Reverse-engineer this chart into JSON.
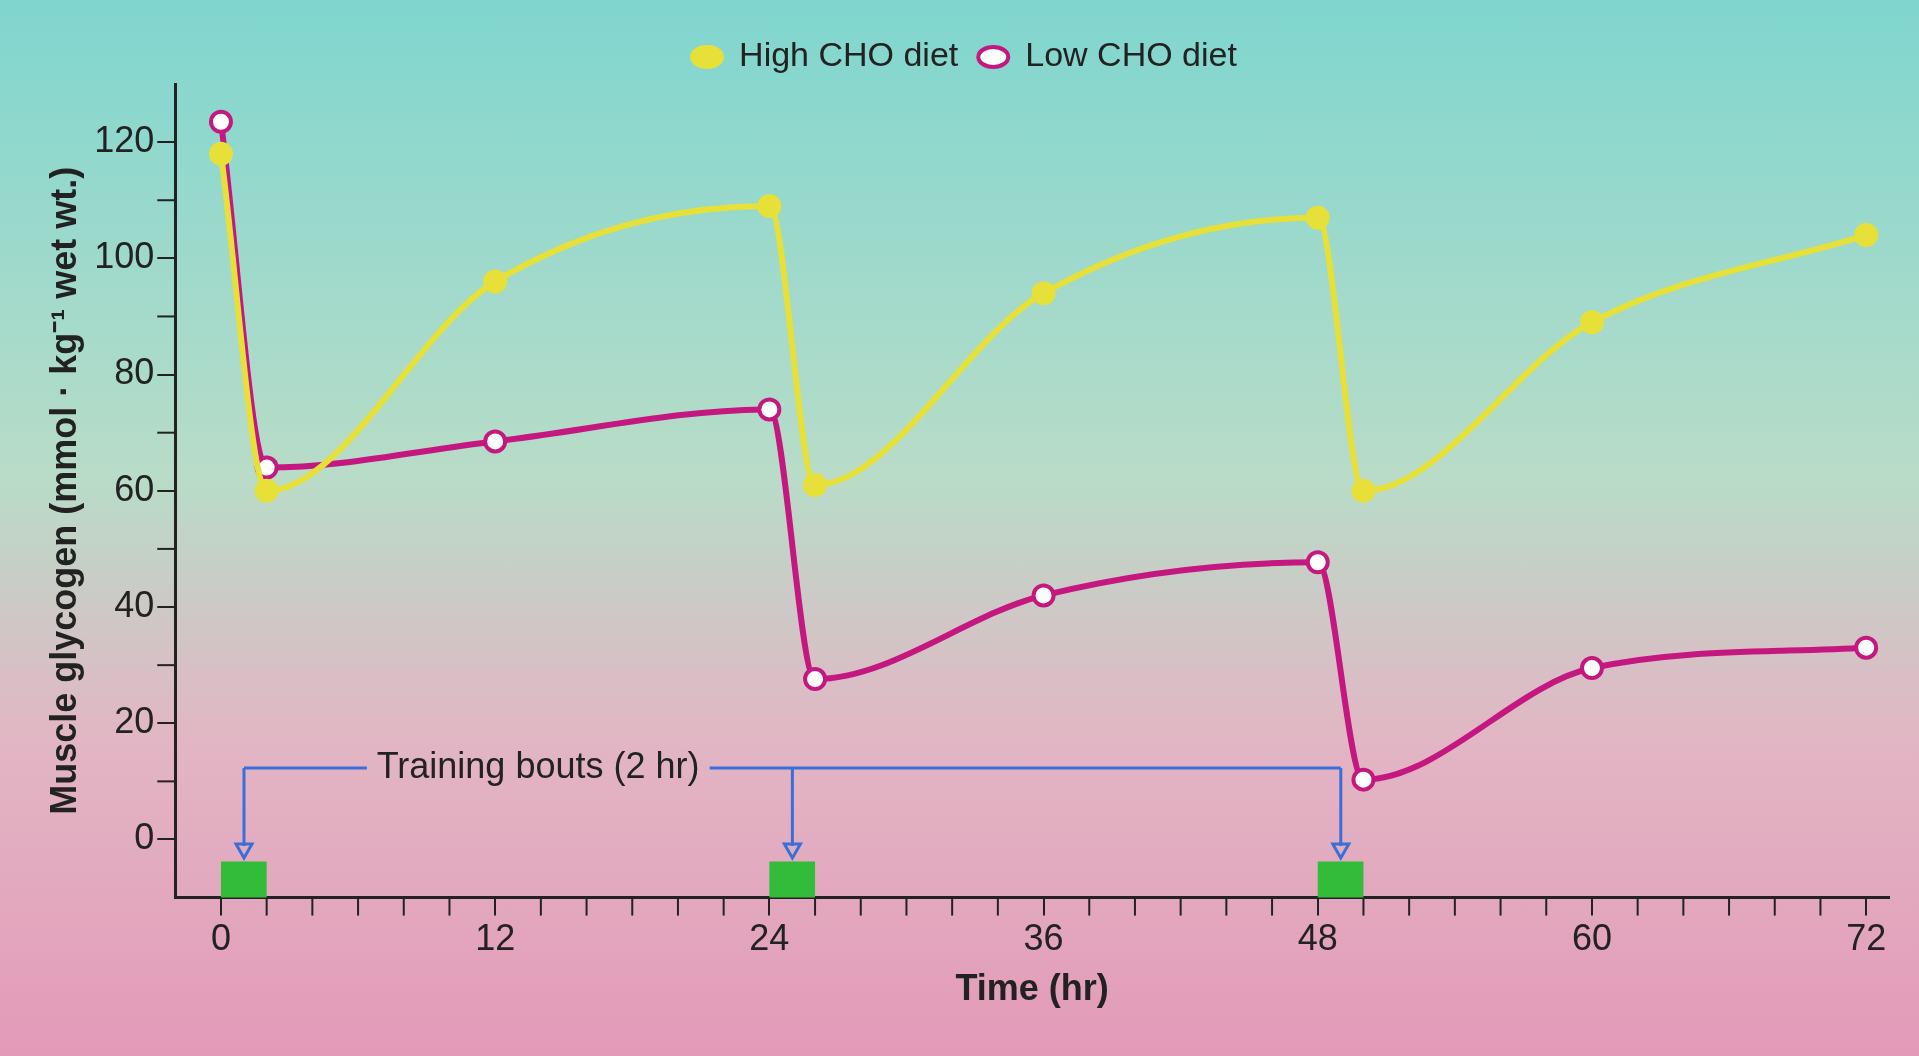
{
  "chart_data": {
    "type": "line",
    "xlabel": "Time (hr)",
    "ylabel": "Muscle glycogen (mmol · kg⁻¹ wet wt.)",
    "x": [
      0,
      2,
      12,
      24,
      26,
      36,
      48,
      50,
      60,
      72
    ],
    "series": [
      {
        "name": "High CHO diet",
        "color": "#e6e038",
        "values": [
          118,
          60,
          96,
          109,
          61,
          94,
          107,
          60,
          89,
          104
        ]
      },
      {
        "name": "Low CHO diet",
        "color": "#c4177f",
        "values": [
          123.5,
          64,
          68.5,
          74,
          27.6,
          42,
          47.7,
          10.3,
          29.5,
          33
        ]
      }
    ],
    "xlim": [
      -2,
      73
    ],
    "xticks": [
      0,
      12,
      24,
      36,
      48,
      60,
      72
    ],
    "ylim": [
      -10,
      130
    ],
    "yticks": [
      0,
      20,
      40,
      60,
      80,
      100,
      120
    ],
    "bands": [
      {
        "axis": "x",
        "from": 0,
        "to": 2,
        "color": "#33bb3a"
      },
      {
        "axis": "x",
        "from": 24,
        "to": 26,
        "color": "#33bb3a"
      },
      {
        "axis": "x",
        "from": 48,
        "to": 50,
        "color": "#33bb3a"
      }
    ],
    "annotations": [
      "Training bouts (2 hr)"
    ],
    "legend": "top",
    "marker": "circle",
    "line_style": "solid",
    "grid": false
  }
}
